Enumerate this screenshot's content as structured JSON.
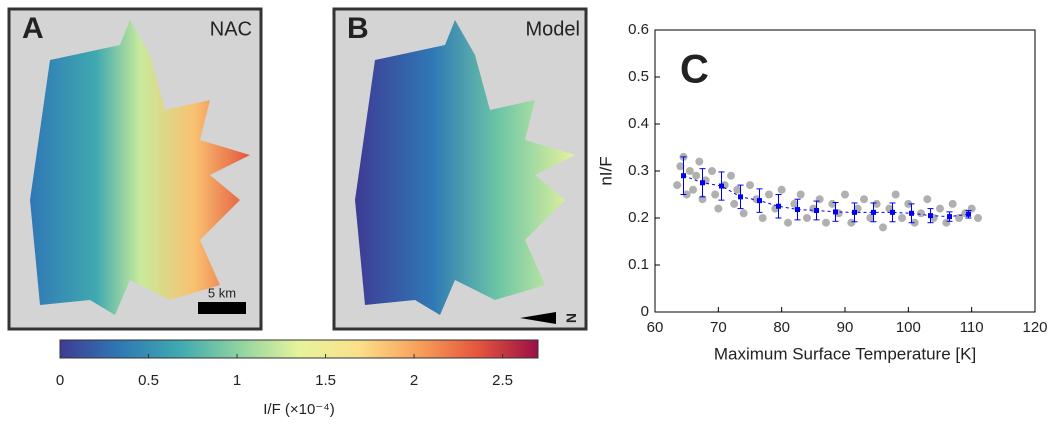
{
  "panels": [
    {
      "letter": "A",
      "title": "NAC",
      "scale_label": "5 km"
    },
    {
      "letter": "B",
      "title": "Model",
      "north_label": "N"
    }
  ],
  "chart_data": [
    {
      "type": "colorbar",
      "xlabel": "I/F (×10⁻⁴)",
      "xlim": [
        0,
        2.7
      ],
      "xticks": [
        0,
        0.5,
        1,
        1.5,
        2,
        2.5
      ],
      "colors": [
        "#3e3b94",
        "#2f78b5",
        "#3fa9b0",
        "#8fd3a0",
        "#e6f49c",
        "#fbe08a",
        "#f8a05a",
        "#e3553c",
        "#9b0f45"
      ]
    },
    {
      "type": "scatter",
      "title": "C",
      "xlabel": "Maximum Surface Temperature [K]",
      "ylabel": "nI/F",
      "xlim": [
        60,
        120
      ],
      "xticks": [
        60,
        70,
        80,
        90,
        100,
        110,
        120
      ],
      "ylim": [
        0,
        0.6
      ],
      "yticks": [
        0,
        0.1,
        0.2,
        0.3,
        0.4,
        0.5,
        0.6
      ],
      "points": {
        "color": "#b0b0b0",
        "x": [
          63.5,
          64,
          64.5,
          65,
          65.5,
          66,
          66.5,
          67,
          67.5,
          68,
          69,
          69.5,
          70,
          71,
          72,
          72.5,
          73,
          74,
          75,
          76,
          77,
          78,
          79,
          80,
          81,
          82,
          83,
          84,
          85,
          86,
          87,
          88,
          89,
          90,
          91,
          92,
          93,
          94,
          95,
          96,
          97,
          98,
          99,
          100,
          101,
          102,
          103,
          104,
          105,
          106,
          107,
          108,
          109,
          110,
          111
        ],
        "y": [
          0.27,
          0.31,
          0.33,
          0.25,
          0.3,
          0.26,
          0.29,
          0.32,
          0.24,
          0.28,
          0.3,
          0.25,
          0.22,
          0.27,
          0.29,
          0.23,
          0.26,
          0.21,
          0.27,
          0.24,
          0.2,
          0.25,
          0.22,
          0.26,
          0.19,
          0.23,
          0.25,
          0.2,
          0.22,
          0.24,
          0.19,
          0.23,
          0.21,
          0.25,
          0.19,
          0.22,
          0.24,
          0.2,
          0.23,
          0.18,
          0.22,
          0.25,
          0.2,
          0.23,
          0.19,
          0.21,
          0.24,
          0.2,
          0.22,
          0.19,
          0.23,
          0.2,
          0.21,
          0.22,
          0.2
        ]
      },
      "means": {
        "color": "#0000ee",
        "x": [
          64.5,
          67.5,
          70.5,
          73.5,
          76.5,
          79.5,
          82.5,
          85.5,
          88.5,
          91.5,
          94.5,
          97.5,
          100.5,
          103.5,
          106.5,
          109.5
        ],
        "y": [
          0.29,
          0.275,
          0.268,
          0.245,
          0.237,
          0.225,
          0.218,
          0.216,
          0.213,
          0.212,
          0.212,
          0.212,
          0.21,
          0.205,
          0.203,
          0.208
        ],
        "errors": [
          0.04,
          0.03,
          0.03,
          0.025,
          0.025,
          0.025,
          0.022,
          0.02,
          0.02,
          0.02,
          0.02,
          0.02,
          0.02,
          0.015,
          0.01,
          0.008
        ]
      }
    }
  ]
}
